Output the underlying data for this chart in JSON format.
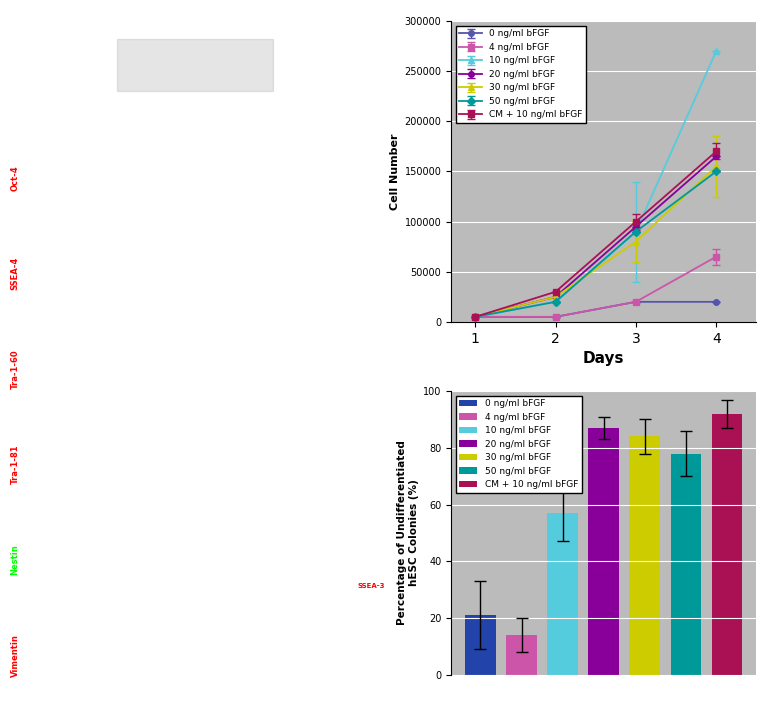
{
  "line_chart": {
    "days": [
      1,
      2,
      3,
      4
    ],
    "series": [
      {
        "label": "0 ng/ml bFGF",
        "color": "#5555aa",
        "marker": "o",
        "markersize": 4,
        "values": [
          5000,
          5000,
          20000,
          20000
        ],
        "errors": [
          0,
          0,
          0,
          0
        ]
      },
      {
        "label": "4 ng/ml bFGF",
        "color": "#cc55aa",
        "marker": "s",
        "markersize": 4,
        "values": [
          5000,
          5000,
          20000,
          65000
        ],
        "errors": [
          0,
          0,
          0,
          8000
        ]
      },
      {
        "label": "10 ng/ml bFGF",
        "color": "#55ccdd",
        "marker": "^",
        "markersize": 4,
        "values": [
          5000,
          20000,
          90000,
          270000
        ],
        "errors": [
          0,
          0,
          50000,
          0
        ]
      },
      {
        "label": "20 ng/ml bFGF",
        "color": "#880099",
        "marker": "o",
        "markersize": 4,
        "values": [
          5000,
          25000,
          95000,
          165000
        ],
        "errors": [
          0,
          0,
          0,
          0
        ]
      },
      {
        "label": "30 ng/ml bFGF",
        "color": "#cccc00",
        "marker": "^",
        "markersize": 4,
        "values": [
          5000,
          25000,
          80000,
          155000
        ],
        "errors": [
          0,
          0,
          20000,
          30000
        ]
      },
      {
        "label": "50 ng/ml bFGF",
        "color": "#009999",
        "marker": "D",
        "markersize": 4,
        "values": [
          5000,
          20000,
          90000,
          150000
        ],
        "errors": [
          0,
          0,
          0,
          0
        ]
      },
      {
        "label": "CM + 10 ng/ml bFGF",
        "color": "#aa1155",
        "marker": "s",
        "markersize": 4,
        "values": [
          5000,
          30000,
          100000,
          170000
        ],
        "errors": [
          0,
          0,
          8000,
          8000
        ]
      }
    ],
    "ylabel": "Cell Number",
    "xlabel": "Days",
    "ylim": [
      0,
      300000
    ],
    "yticks": [
      0,
      50000,
      100000,
      150000,
      200000,
      250000,
      300000
    ],
    "bg_color": "#bbbbbb"
  },
  "bar_chart": {
    "categories": [
      "0 ng/ml bFGF",
      "4 ng/ml bFGF",
      "10 ng/ml bFGF",
      "20 ng/ml bFGF",
      "30 ng/ml bFGF",
      "50 ng/ml bFGF",
      "CM + 10 ng/ml bFGF"
    ],
    "values": [
      21,
      14,
      57,
      87,
      84,
      78,
      92
    ],
    "errors": [
      12,
      6,
      10,
      4,
      6,
      8,
      5
    ],
    "colors": [
      "#2244aa",
      "#cc55aa",
      "#55ccdd",
      "#880099",
      "#cccc00",
      "#009999",
      "#aa1155"
    ],
    "ylabel": "Percentage of Undifferentiated\nhESC Colonies (%)",
    "ylim": [
      0,
      100
    ],
    "yticks": [
      0,
      20,
      40,
      60,
      80,
      100
    ],
    "bg_color": "#bbbbbb"
  },
  "figure_bg": "#ffffff",
  "left_panel": {
    "top_image_color": "#888888",
    "label_color": "#000000",
    "rows": [
      {
        "label": "Oct-4",
        "left_color": "#660000",
        "right_color": "#330044"
      },
      {
        "label": "SSEA-4",
        "left_color": "#880000",
        "right_color": "#220033"
      },
      {
        "label": "Tra-1-60",
        "left_color": "#660000",
        "right_color": "#220044"
      },
      {
        "label": "Tra-1-81",
        "left_color": "#660000",
        "right_color": "#220044"
      },
      {
        "label": "Nestin",
        "left_color": "#003300",
        "right_color": "#000000"
      },
      {
        "label": "Vimentin",
        "left_color": "#550000",
        "right_color": "#000022"
      }
    ]
  }
}
